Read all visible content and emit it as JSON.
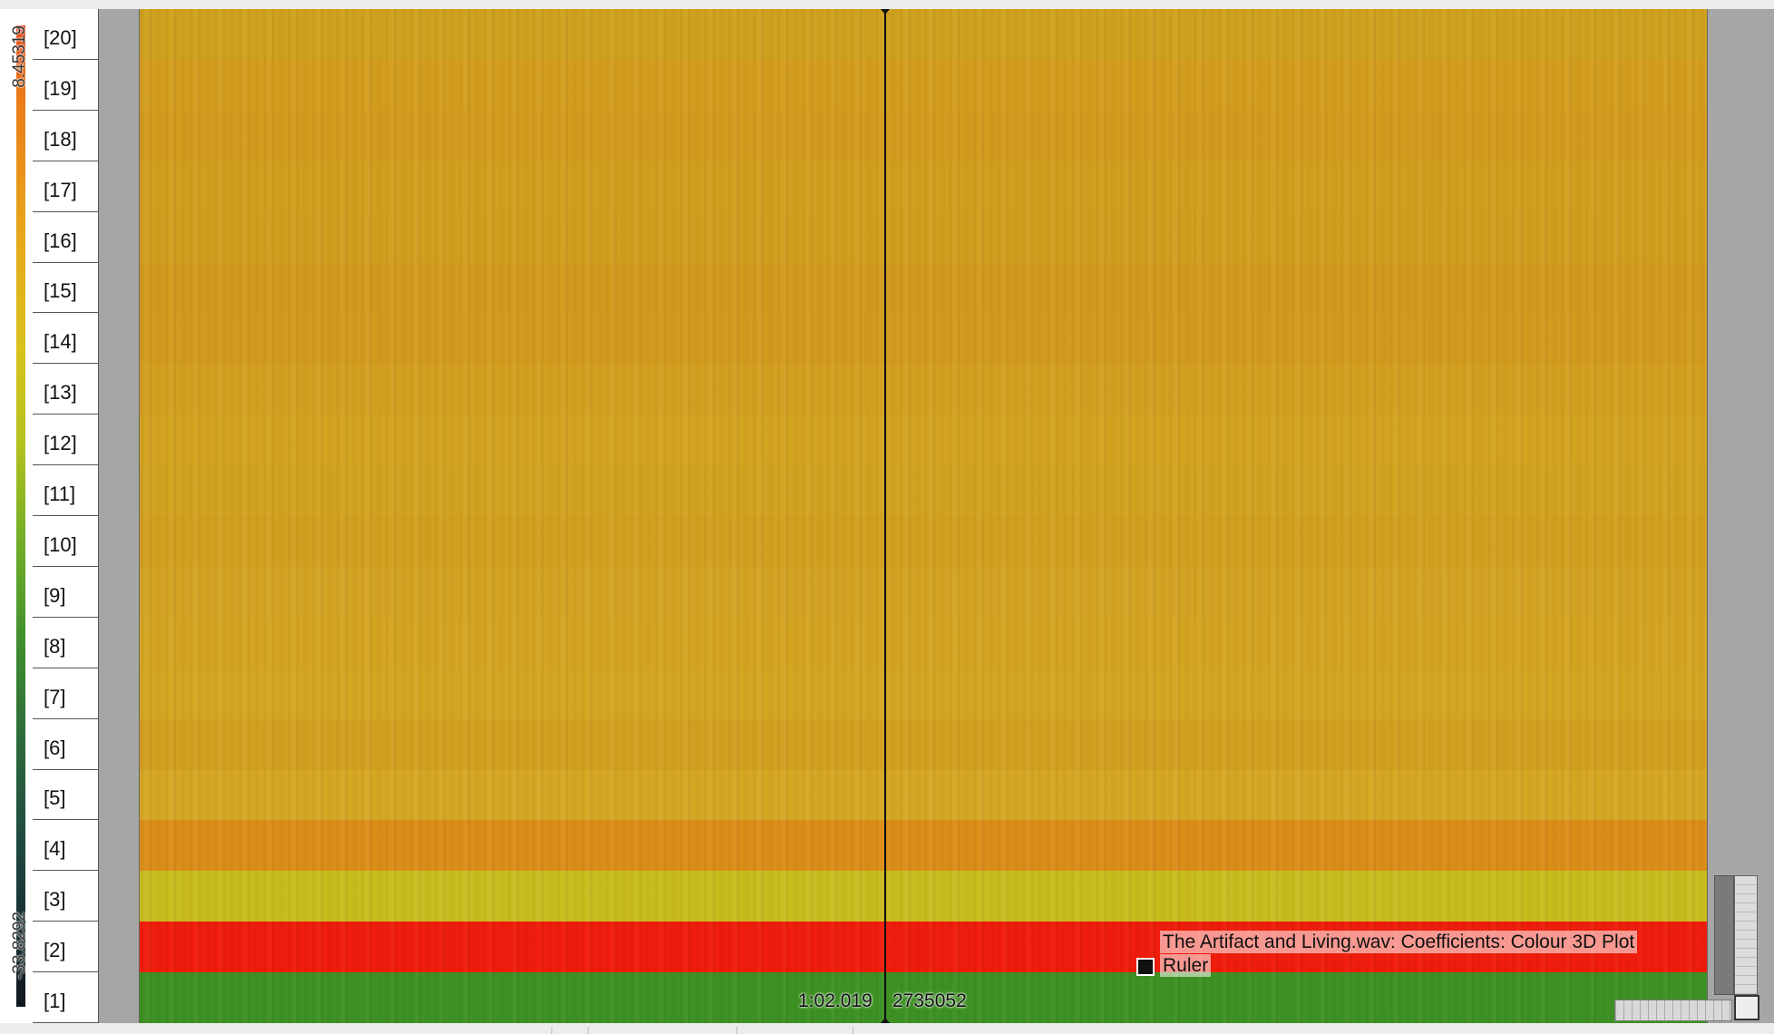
{
  "colour_scale": {
    "max_label": "8.45319",
    "min_label": "-33.8292"
  },
  "bins": [
    {
      "label": "[20]",
      "color": "#d1a21f"
    },
    {
      "label": "[19]",
      "color": "#d49e1e"
    },
    {
      "label": "[18]",
      "color": "#d49c1e"
    },
    {
      "label": "[17]",
      "color": "#d3a01f"
    },
    {
      "label": "[16]",
      "color": "#d39f1f"
    },
    {
      "label": "[15]",
      "color": "#d39b1f"
    },
    {
      "label": "[14]",
      "color": "#d39c1f"
    },
    {
      "label": "[13]",
      "color": "#d4a020"
    },
    {
      "label": "[12]",
      "color": "#d4a421"
    },
    {
      "label": "[11]",
      "color": "#d3a421"
    },
    {
      "label": "[10]",
      "color": "#d3a120"
    },
    {
      "label": "[9]",
      "color": "#d4a423"
    },
    {
      "label": "[8]",
      "color": "#d5a522"
    },
    {
      "label": "[7]",
      "color": "#d5a723"
    },
    {
      "label": "[6]",
      "color": "#d4a020"
    },
    {
      "label": "[5]",
      "color": "#d6a824"
    },
    {
      "label": "[4]",
      "color": "#dd8e19"
    },
    {
      "label": "[3]",
      "color": "#c9bd1f"
    },
    {
      "label": "[2]",
      "color": "#f11d0c"
    },
    {
      "label": "[1]",
      "color": "#3e9224"
    }
  ],
  "cursor": {
    "time": "1:02.019",
    "frame": "2735052"
  },
  "layer": {
    "title": "The Artifact and Living.wav: Coefficients: Colour 3D Plot",
    "name": "Ruler"
  }
}
